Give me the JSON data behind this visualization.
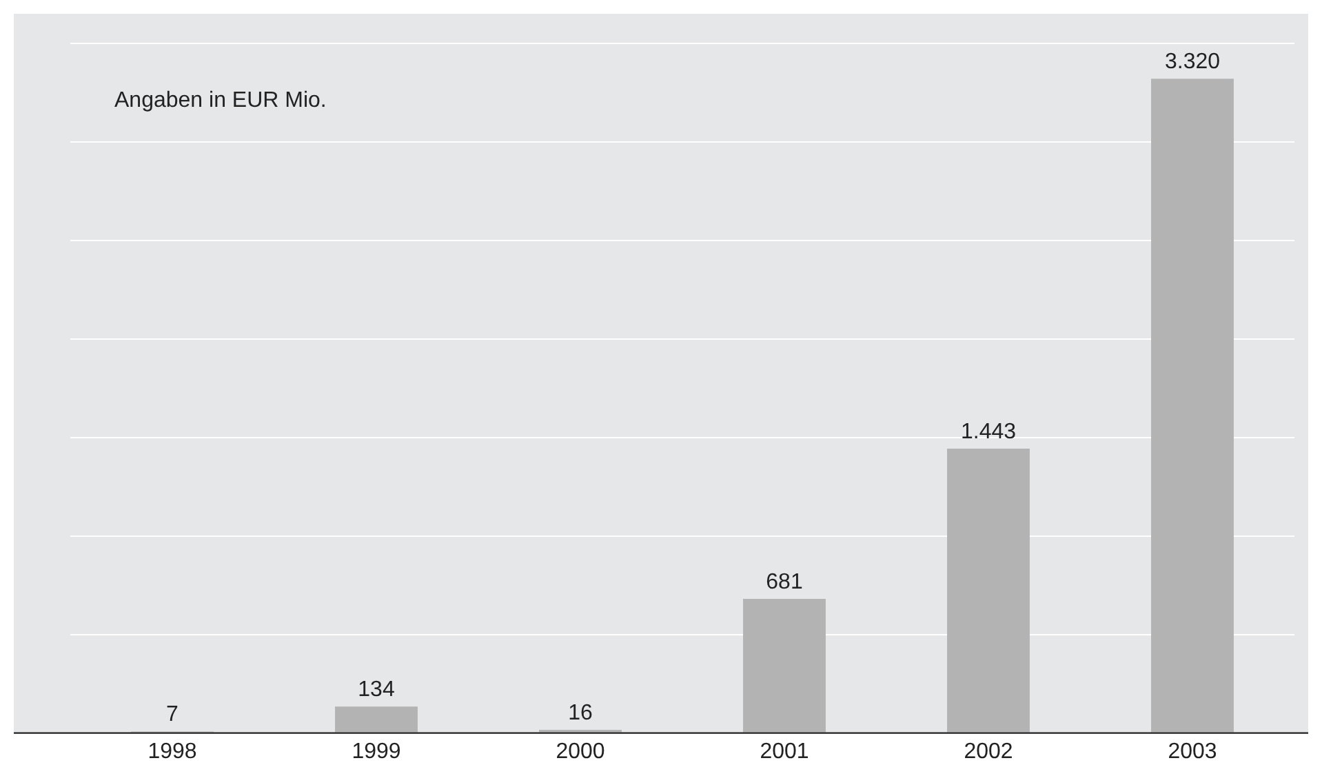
{
  "chart_data": {
    "type": "bar",
    "categories": [
      "1998",
      "1999",
      "2000",
      "2001",
      "2002",
      "2003"
    ],
    "values": [
      7,
      134,
      16,
      681,
      1443,
      3320
    ],
    "value_labels": [
      "7",
      "134",
      "16",
      "681",
      "1.443",
      "3.320"
    ],
    "color": "#b3b3b3",
    "ylim": [
      0,
      3650
    ],
    "yticks": [
      {
        "value": 0,
        "label": null
      },
      {
        "value": 500,
        "label": null
      },
      {
        "value": 1000,
        "label": null
      },
      {
        "value": 1500,
        "label": null
      },
      {
        "value": 2000,
        "label": null
      },
      {
        "value": 2500,
        "label": null
      },
      {
        "value": 3000,
        "label": null
      },
      {
        "value": 3500,
        "label": null
      }
    ],
    "tick_labels": "x",
    "grid": "y",
    "annotations": [
      "Angaben in EUR Mio."
    ]
  }
}
